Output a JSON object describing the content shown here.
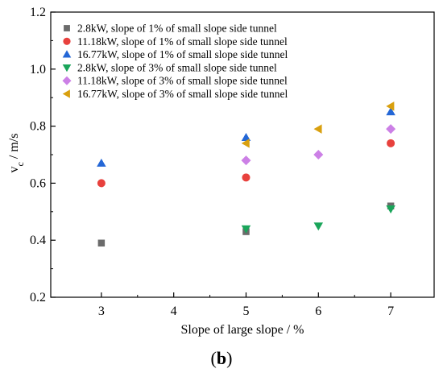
{
  "caption": {
    "open": "(",
    "letter": "b",
    "close": ")"
  },
  "chart_data": {
    "type": "scatter",
    "xlabel": "Slope of large slope / %",
    "ylabel": {
      "base": "v",
      "sub": "c",
      "rest": " / m/s"
    },
    "xlim": [
      2.3,
      7.6
    ],
    "ylim": [
      0.2,
      1.2
    ],
    "xticks": [
      3,
      4,
      5,
      6,
      7
    ],
    "yticks": [
      0.2,
      0.4,
      0.6,
      0.8,
      1.0,
      1.2
    ],
    "ytick_labels": [
      "0.2",
      "0.4",
      "0.6",
      "0.8",
      "1.0",
      "1.2"
    ],
    "grid": false,
    "legend_position": "top-left",
    "series": [
      {
        "name": "2.8kW, slope of 1% of small slope side tunnel",
        "marker": "square",
        "color": "#6b6b6b",
        "x": [
          3,
          5,
          7
        ],
        "y": [
          0.39,
          0.43,
          0.52
        ]
      },
      {
        "name": "11.18kW, slope of 1% of small slope side tunnel",
        "marker": "circle",
        "color": "#e8413d",
        "x": [
          3,
          5,
          7
        ],
        "y": [
          0.6,
          0.62,
          0.74
        ]
      },
      {
        "name": "16.77kW, slope of 1% of small slope side tunnel",
        "marker": "triangle-up",
        "color": "#2467d6",
        "x": [
          3,
          5,
          7
        ],
        "y": [
          0.67,
          0.76,
          0.85
        ]
      },
      {
        "name": "2.8kW, slope of 3% of small slope side tunnel",
        "marker": "triangle-down",
        "color": "#1aa55a",
        "x": [
          5,
          6,
          7
        ],
        "y": [
          0.44,
          0.45,
          0.51
        ]
      },
      {
        "name": "11.18kW, slope of 3% of small slope side tunnel",
        "marker": "diamond",
        "color": "#cc80e6",
        "x": [
          5,
          6,
          7
        ],
        "y": [
          0.68,
          0.7,
          0.79
        ]
      },
      {
        "name": "16.77kW, slope of 3% of small slope side tunnel",
        "marker": "triangle-left",
        "color": "#d9a00f",
        "x": [
          5,
          6,
          7
        ],
        "y": [
          0.74,
          0.79,
          0.87
        ]
      }
    ]
  }
}
